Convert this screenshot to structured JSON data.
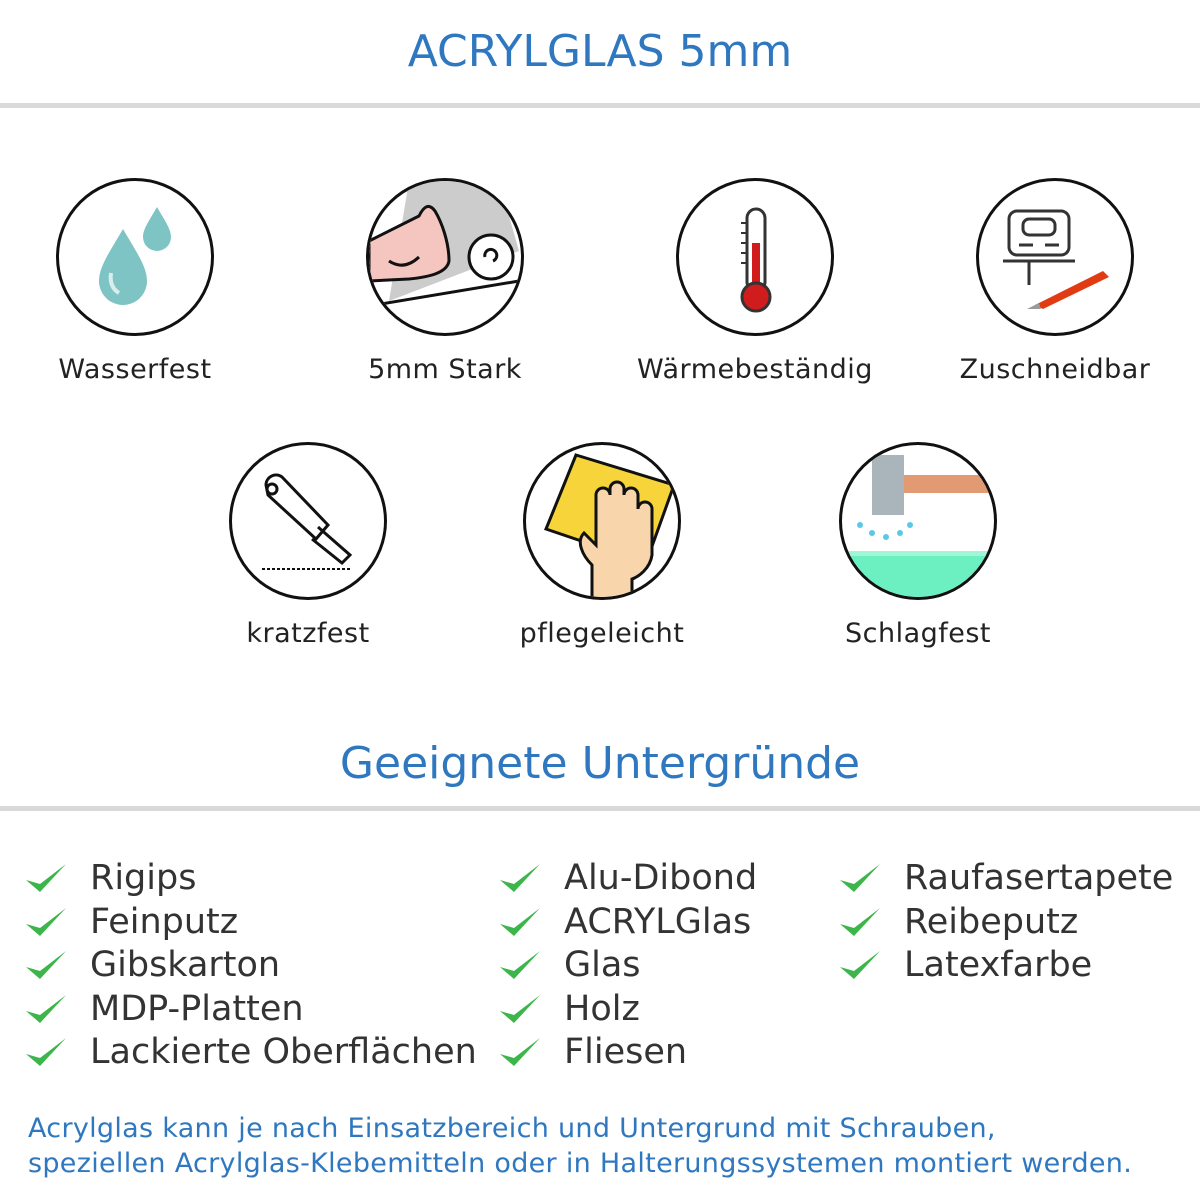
{
  "header": {
    "title": "ACRYLGLAS 5mm"
  },
  "features": [
    {
      "label": "Wasserfest",
      "icon": "water-drops-icon"
    },
    {
      "label": "5mm Stark",
      "icon": "strong-arm-icon"
    },
    {
      "label": "Wärmebeständig",
      "icon": "thermometer-icon"
    },
    {
      "label": "Zuschneidbar",
      "icon": "jigsaw-cutter-icon"
    },
    {
      "label": "kratzfest",
      "icon": "box-cutter-icon"
    },
    {
      "label": "pflegeleicht",
      "icon": "hand-sponge-icon"
    },
    {
      "label": "Schlagfest",
      "icon": "hammer-icon"
    }
  ],
  "surfaces": {
    "title": "Geeignete Untergründe",
    "columns": [
      [
        "Rigips",
        "Feinputz",
        "Gibskarton",
        "MDP-Platten",
        "Lackierte Oberflächen"
      ],
      [
        "Alu-Dibond",
        "ACRYLGlas",
        "Glas",
        "Holz",
        "Fliesen"
      ],
      [
        "Raufasertapete",
        "Reibeputz",
        "Latexfarbe"
      ]
    ],
    "check_color": "#3cb54a"
  },
  "footer": {
    "lines": [
      "Acrylglas kann je nach Einsatzbereich und Untergrund mit Schrauben,",
      "speziellen Acrylglas-Klebemitteln oder in Halterungssystemen montiert werden."
    ]
  },
  "colors": {
    "accent": "#2f78c0",
    "rule": "#d9d9d9",
    "text": "#333333"
  }
}
